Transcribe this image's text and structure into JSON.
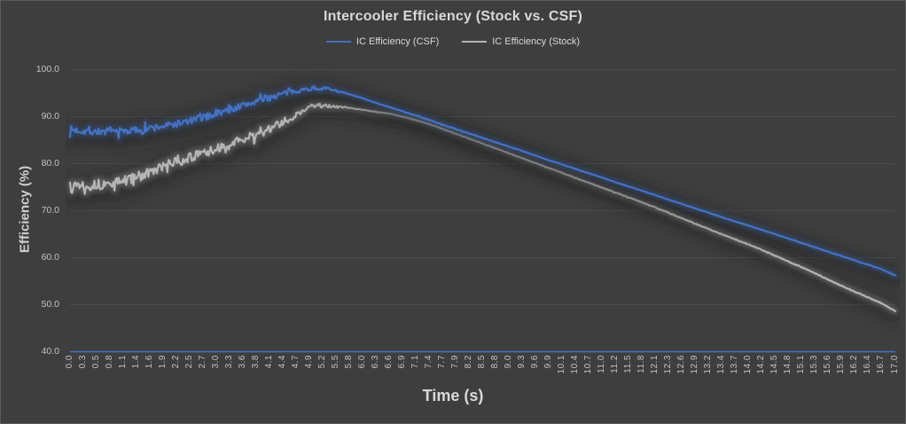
{
  "colors": {
    "background": "#3E3E3E",
    "gridline": "#4C4C4C",
    "tick_text": "#C4C4C4",
    "title_text": "#D9D9D9",
    "axis_line": "#4472C4",
    "shadow": "#1E1E1E"
  },
  "chart_data": {
    "type": "line",
    "title": "Intercooler Efficiency (Stock vs. CSF)",
    "xlabel": "Time (s)",
    "ylabel": "Efficiency (%)",
    "xlim": [
      0,
      17
    ],
    "ylim": [
      40,
      100
    ],
    "grid": "horizontal",
    "legend_position": "top-center",
    "y_ticks": [
      100,
      90,
      80,
      70,
      60,
      50,
      40
    ],
    "x_tick_labels": [
      "0.0",
      "0.3",
      "0.5",
      "0.8",
      "1.1",
      "1.4",
      "1.6",
      "1.9",
      "2.2",
      "2.5",
      "2.7",
      "3.0",
      "3.3",
      "3.6",
      "3.8",
      "4.1",
      "4.4",
      "4.7",
      "4.9",
      "5.2",
      "5.5",
      "5.8",
      "6.0",
      "6.3",
      "6.6",
      "6.9",
      "7.1",
      "7.4",
      "7.7",
      "7.9",
      "8.2",
      "8.5",
      "8.8",
      "9.0",
      "9.3",
      "9.6",
      "9.9",
      "10.1",
      "10.4",
      "10.7",
      "11.0",
      "11.2",
      "11.5",
      "11.8",
      "12.1",
      "12.3",
      "12.6",
      "12.9",
      "13.2",
      "13.4",
      "13.7",
      "14.0",
      "14.2",
      "14.5",
      "14.8",
      "15.1",
      "15.3",
      "15.6",
      "15.9",
      "16.2",
      "16.4",
      "16.7",
      "17.0"
    ],
    "series": [
      {
        "name": "IC Efficiency (Stock)",
        "color": "#B5B5B5",
        "line_width": 2.2,
        "noise": {
          "amplitude": 1.05,
          "fade_end": 5.8,
          "residual": 0.07,
          "seed": 13
        },
        "points": [
          [
            0,
            75.8
          ],
          [
            0.4,
            75.4
          ],
          [
            0.8,
            75.6
          ],
          [
            1.2,
            76.6
          ],
          [
            1.6,
            77.9
          ],
          [
            2.0,
            79.7
          ],
          [
            2.4,
            81.1
          ],
          [
            2.8,
            82.3
          ],
          [
            3.2,
            83.7
          ],
          [
            3.6,
            85.2
          ],
          [
            4.0,
            86.9
          ],
          [
            4.3,
            88.3
          ],
          [
            4.6,
            90.1
          ],
          [
            4.9,
            91.8
          ],
          [
            5.1,
            92.4
          ],
          [
            5.4,
            92.2
          ],
          [
            5.8,
            91.8
          ],
          [
            6.2,
            91.2
          ],
          [
            6.6,
            90.6
          ],
          [
            7.0,
            89.6
          ],
          [
            7.4,
            88.4
          ],
          [
            7.7,
            87.3
          ],
          [
            8.2,
            85.4
          ],
          [
            8.7,
            83.5
          ],
          [
            9.2,
            81.6
          ],
          [
            9.7,
            79.7
          ],
          [
            10.2,
            77.8
          ],
          [
            10.7,
            75.9
          ],
          [
            11.2,
            74.0
          ],
          [
            11.7,
            72.1
          ],
          [
            12.2,
            70.1
          ],
          [
            12.7,
            68.0
          ],
          [
            13.2,
            65.9
          ],
          [
            13.7,
            63.9
          ],
          [
            14.2,
            61.9
          ],
          [
            14.7,
            59.6
          ],
          [
            15.2,
            57.4
          ],
          [
            15.7,
            54.9
          ],
          [
            16.2,
            52.6
          ],
          [
            16.7,
            50.4
          ],
          [
            17,
            48.6
          ]
        ]
      },
      {
        "name": "IC Efficiency (CSF)",
        "color": "#4472C4",
        "line_width": 2.2,
        "noise": {
          "amplitude": 0.75,
          "fade_end": 5.8,
          "residual": 0.07,
          "seed": 7
        },
        "points": [
          [
            0,
            87.2
          ],
          [
            0.4,
            86.9
          ],
          [
            0.8,
            86.8
          ],
          [
            1.2,
            87.0
          ],
          [
            1.6,
            87.4
          ],
          [
            2.0,
            88.1
          ],
          [
            2.4,
            88.9
          ],
          [
            2.8,
            90.0
          ],
          [
            3.2,
            91.2
          ],
          [
            3.6,
            92.5
          ],
          [
            4.0,
            93.8
          ],
          [
            4.4,
            94.9
          ],
          [
            4.7,
            95.6
          ],
          [
            5.0,
            96.0
          ],
          [
            5.3,
            96.0
          ],
          [
            5.6,
            95.2
          ],
          [
            6.0,
            94.0
          ],
          [
            6.4,
            92.6
          ],
          [
            6.8,
            91.3
          ],
          [
            7.2,
            90.0
          ],
          [
            7.7,
            88.2
          ],
          [
            8.2,
            86.5
          ],
          [
            8.7,
            84.8
          ],
          [
            9.2,
            83.1
          ],
          [
            9.7,
            81.3
          ],
          [
            10.2,
            79.6
          ],
          [
            10.7,
            77.9
          ],
          [
            11.2,
            76.2
          ],
          [
            11.7,
            74.5
          ],
          [
            12.2,
            72.8
          ],
          [
            12.7,
            71.1
          ],
          [
            13.2,
            69.4
          ],
          [
            13.7,
            67.7
          ],
          [
            14.2,
            66.1
          ],
          [
            14.7,
            64.4
          ],
          [
            15.2,
            62.7
          ],
          [
            15.7,
            61.0
          ],
          [
            16.2,
            59.3
          ],
          [
            16.7,
            57.6
          ],
          [
            17,
            56.2
          ]
        ]
      }
    ]
  },
  "legend": {
    "csf_label": "IC Efficiency (CSF)",
    "stock_label": "IC Efficiency (Stock)"
  }
}
